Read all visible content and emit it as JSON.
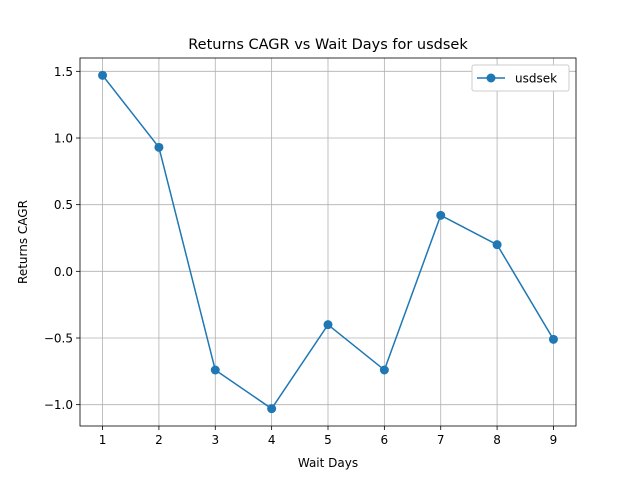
{
  "chart_data": {
    "type": "line",
    "title": "Returns CAGR vs Wait Days for usdsek",
    "xlabel": "Wait Days",
    "ylabel": "Returns CAGR",
    "x": [
      1,
      2,
      3,
      4,
      5,
      6,
      7,
      8,
      9
    ],
    "xticks": [
      1,
      2,
      3,
      4,
      5,
      6,
      7,
      8,
      9
    ],
    "xtick_labels": [
      "1",
      "2",
      "3",
      "4",
      "5",
      "6",
      "7",
      "8",
      "9"
    ],
    "yticks": [
      1.5,
      1.0,
      0.5,
      0.0,
      -0.5,
      -1.0
    ],
    "ytick_labels": [
      "1.5",
      "1.0",
      "0.5",
      "0.0",
      "−0.5",
      "−1.0"
    ],
    "xlim": [
      0.6,
      9.4
    ],
    "ylim": [
      -1.16,
      1.6
    ],
    "grid": true,
    "legend_position": "top-right",
    "series": [
      {
        "name": "usdsek",
        "color": "#1f77b4",
        "marker": "circle",
        "values": [
          1.47,
          0.93,
          -0.74,
          -1.03,
          -0.4,
          -0.74,
          0.42,
          0.2,
          -0.51
        ]
      }
    ]
  }
}
